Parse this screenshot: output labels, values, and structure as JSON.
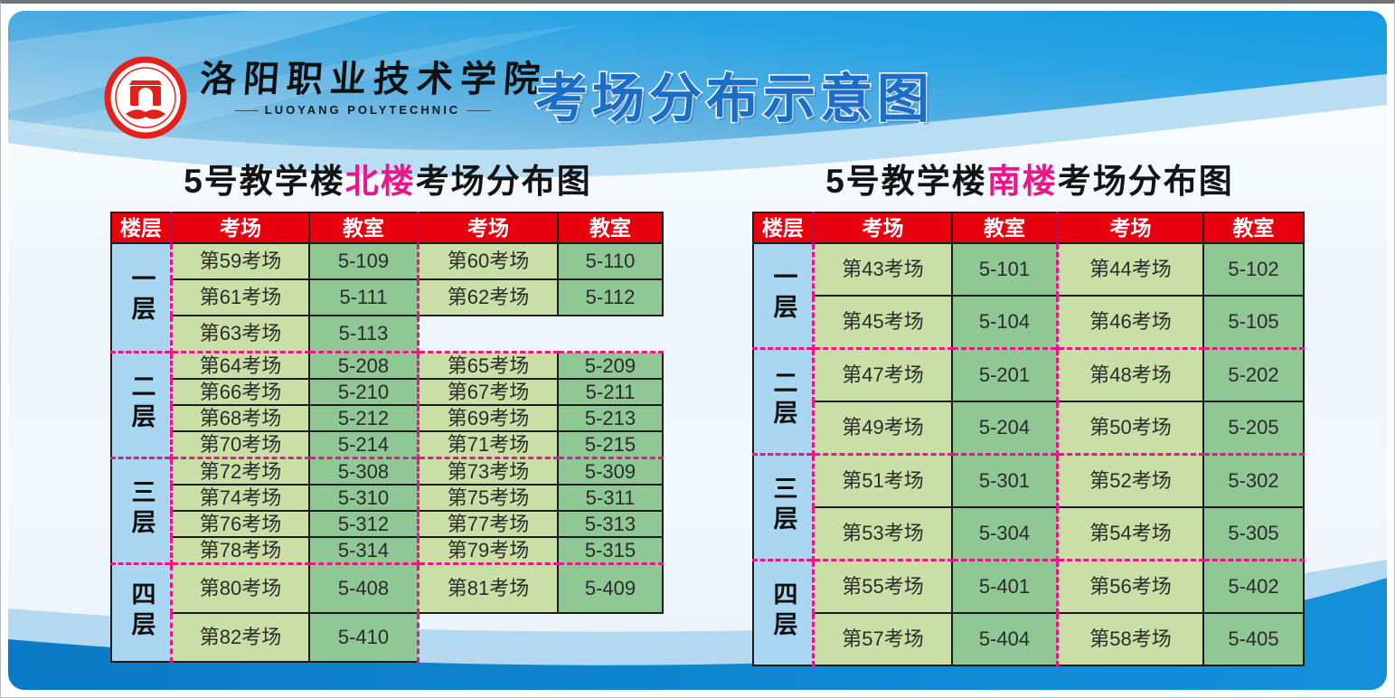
{
  "header": {
    "school_name_cn": "洛阳职业技术学院",
    "school_name_en": "LUOYANG  POLYTECHNIC",
    "logo_icon": "school-seal-icon",
    "main_title": "考场分布示意图"
  },
  "colors": {
    "header_red": "#e8000f",
    "accent_magenta": "#ec158c",
    "floor_blue": "#a9d6f0",
    "room_green_light": "#cadfa6",
    "room_green_dark": "#8fc795",
    "title_blue": "#1b6ec7",
    "wave_dark_blue": "#0c80cf",
    "wave_light_blue": "#b3d8ef"
  },
  "north_table": {
    "title_prefix": "5号教学楼",
    "title_highlight": "北楼",
    "title_suffix": "考场分布图",
    "headers": [
      "楼层",
      "考场",
      "教室",
      "考场",
      "教室"
    ],
    "floors": [
      {
        "label": "一层",
        "rows": [
          [
            "第59考场",
            "5-109",
            "第60考场",
            "5-110"
          ],
          [
            "第61考场",
            "5-111",
            "第62考场",
            "5-112"
          ],
          [
            "第63考场",
            "5-113",
            "",
            ""
          ]
        ]
      },
      {
        "label": "二层",
        "rows": [
          [
            "第64考场",
            "5-208",
            "第65考场",
            "5-209"
          ],
          [
            "第66考场",
            "5-210",
            "第67考场",
            "5-211"
          ],
          [
            "第68考场",
            "5-212",
            "第69考场",
            "5-213"
          ],
          [
            "第70考场",
            "5-214",
            "第71考场",
            "5-215"
          ]
        ]
      },
      {
        "label": "三层",
        "rows": [
          [
            "第72考场",
            "5-308",
            "第73考场",
            "5-309"
          ],
          [
            "第74考场",
            "5-310",
            "第75考场",
            "5-311"
          ],
          [
            "第76考场",
            "5-312",
            "第77考场",
            "5-313"
          ],
          [
            "第78考场",
            "5-314",
            "第79考场",
            "5-315"
          ]
        ]
      },
      {
        "label": "四层",
        "rows": [
          [
            "第80考场",
            "5-408",
            "第81考场",
            "5-409"
          ],
          [
            "第82考场",
            "5-410",
            "",
            ""
          ]
        ]
      }
    ]
  },
  "south_table": {
    "title_prefix": "5号教学楼",
    "title_highlight": "南楼",
    "title_suffix": "考场分布图",
    "headers": [
      "楼层",
      "考场",
      "教室",
      "考场",
      "教室"
    ],
    "floors": [
      {
        "label": "一层",
        "rows": [
          [
            "第43考场",
            "5-101",
            "第44考场",
            "5-102"
          ],
          [
            "第45考场",
            "5-104",
            "第46考场",
            "5-105"
          ]
        ]
      },
      {
        "label": "二层",
        "rows": [
          [
            "第47考场",
            "5-201",
            "第48考场",
            "5-202"
          ],
          [
            "第49考场",
            "5-204",
            "第50考场",
            "5-205"
          ]
        ]
      },
      {
        "label": "三层",
        "rows": [
          [
            "第51考场",
            "5-301",
            "第52考场",
            "5-302"
          ],
          [
            "第53考场",
            "5-304",
            "第54考场",
            "5-305"
          ]
        ]
      },
      {
        "label": "四层",
        "rows": [
          [
            "第55考场",
            "5-401",
            "第56考场",
            "5-402"
          ],
          [
            "第57考场",
            "5-404",
            "第58考场",
            "5-405"
          ]
        ]
      }
    ]
  }
}
